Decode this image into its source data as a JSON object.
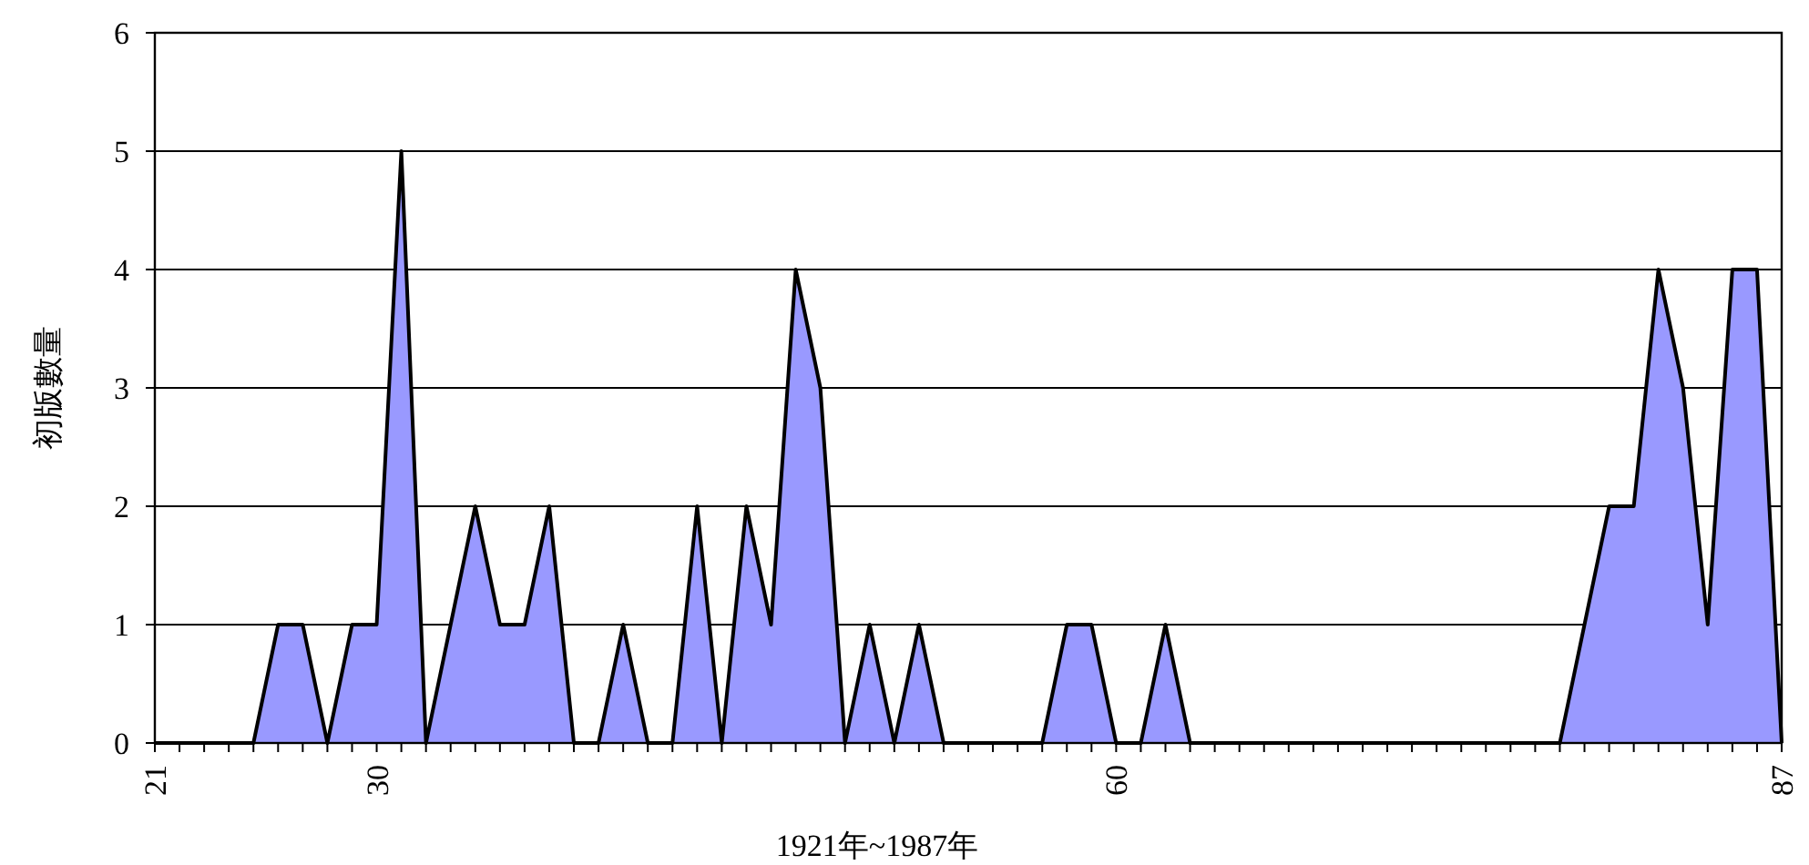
{
  "chart_data": {
    "type": "area",
    "xlabel": "1921年~1987年",
    "ylabel": "初版數量",
    "categories": [
      "21",
      null,
      null,
      null,
      null,
      null,
      null,
      null,
      null,
      "30",
      null,
      null,
      null,
      null,
      null,
      null,
      null,
      null,
      null,
      null,
      null,
      null,
      null,
      null,
      null,
      null,
      null,
      null,
      null,
      null,
      null,
      null,
      null,
      null,
      null,
      null,
      null,
      null,
      null,
      "60",
      null,
      null,
      null,
      null,
      null,
      null,
      null,
      null,
      null,
      null,
      null,
      null,
      null,
      null,
      null,
      null,
      null,
      null,
      null,
      null,
      null,
      null,
      null,
      null,
      null,
      null,
      "87"
    ],
    "series": [
      {
        "color": "#9999ff",
        "values": [
          0,
          0,
          0,
          0,
          0,
          1,
          1,
          0,
          1,
          1,
          5,
          0,
          1,
          2,
          1,
          1,
          2,
          0,
          0,
          1,
          0,
          0,
          2,
          0,
          2,
          1,
          4,
          3,
          0,
          1,
          0,
          1,
          0,
          0,
          0,
          0,
          0,
          1,
          1,
          0,
          0,
          1,
          0,
          0,
          0,
          0,
          0,
          0,
          0,
          0,
          0,
          0,
          0,
          0,
          0,
          0,
          0,
          0,
          1,
          2,
          2,
          4,
          3,
          1,
          4,
          4,
          0
        ]
      }
    ],
    "ylim": [
      0,
      6
    ],
    "yticks": [
      0,
      1,
      2,
      3,
      4,
      5,
      6
    ],
    "grid": "y"
  }
}
